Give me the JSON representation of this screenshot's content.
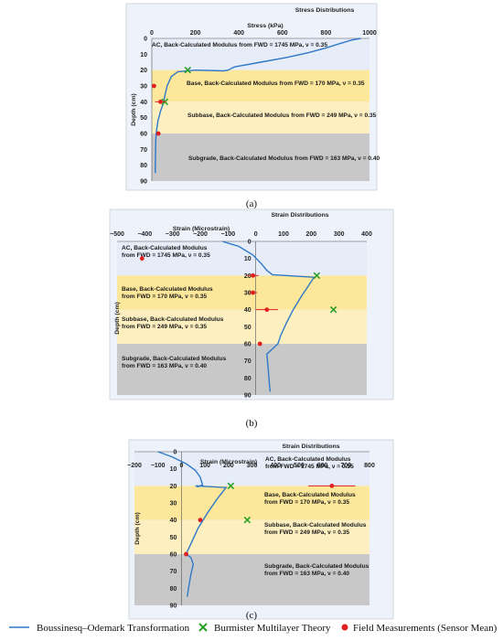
{
  "chart_data": [
    {
      "type": "line",
      "title": "Stress Distributions",
      "xlabel": "Stress (kPa)",
      "ylabel": "Depth (cm)",
      "caption": "(a)",
      "xlim": [
        0,
        1000
      ],
      "ylim": [
        0,
        90
      ],
      "xticks": [
        "0",
        "200",
        "400",
        "600",
        "800",
        "1000"
      ],
      "xtick_values": [
        0,
        200,
        400,
        600,
        800,
        1000
      ],
      "yticks": [
        "0",
        "10",
        "20",
        "30",
        "40",
        "50",
        "60",
        "70",
        "80",
        "90"
      ],
      "layers": [
        {
          "text": "AC, Back-Calculated Modulus from FWD = 1745 MPa, ν = 0.35",
          "top": 0,
          "bottom": 20,
          "color": "#e7edf8"
        },
        {
          "text": "Base, Back-Calculated Modulus from FWD = 170 MPa, ν = 0.35",
          "top": 20,
          "bottom": 40,
          "color": "#fde79b"
        },
        {
          "text": "Subbase, Back-Calculated Modulus from FWD = 249 MPa, ν = 0.35",
          "top": 40,
          "bottom": 60,
          "color": "#fdefc0"
        },
        {
          "text": "Subgrade, Back-Calculated Modulus from FWD = 163 MPa, ν = 0.40",
          "top": 60,
          "bottom": 90,
          "color": "#c8c8c8"
        }
      ],
      "series": [
        {
          "kind": "bo",
          "color": "#2f78c8",
          "points": [
            [
              960,
              0
            ],
            [
              920,
              1
            ],
            [
              870,
              3
            ],
            [
              800,
              6
            ],
            [
              720,
              9
            ],
            [
              620,
              12
            ],
            [
              500,
              15
            ],
            [
              380,
              18
            ],
            [
              350,
              20
            ],
            [
              330,
              20.5
            ],
            [
              200,
              20
            ],
            [
              120,
              21
            ],
            [
              90,
              24
            ],
            [
              70,
              30
            ],
            [
              60,
              36
            ],
            [
              55,
              40
            ],
            [
              40,
              46
            ],
            [
              28,
              52
            ],
            [
              22,
              58
            ],
            [
              20,
              60
            ],
            [
              18,
              65
            ],
            [
              17,
              75
            ],
            [
              16,
              85
            ]
          ]
        },
        {
          "kind": "bmlt",
          "color": "#2aa02a",
          "points": [
            [
              165,
              20
            ],
            [
              60,
              40
            ]
          ]
        },
        {
          "kind": "field",
          "color": "#e02020",
          "points": [
            [
              10,
              30
            ],
            [
              40,
              40
            ],
            [
              30,
              60
            ]
          ],
          "err": [
            0,
            25,
            0
          ]
        }
      ]
    },
    {
      "type": "line",
      "title": "Strain Distributions",
      "xlabel": "Strain (Microstrain)",
      "ylabel": "Depth (cm)",
      "caption": "(b)",
      "xlim": [
        -500,
        400
      ],
      "ylim": [
        0,
        90
      ],
      "xticks": [
        "−500",
        "−400",
        "−300",
        "−200",
        "−100",
        "0",
        "100",
        "200",
        "300",
        "400"
      ],
      "xtick_values": [
        -500,
        -400,
        -300,
        -200,
        -100,
        0,
        100,
        200,
        300,
        400
      ],
      "yticks": [
        "0",
        "10",
        "20",
        "30",
        "40",
        "50",
        "60",
        "70",
        "80",
        "90"
      ],
      "layers": [
        {
          "text": "AC, Back-Calculated Modulus from FWD = 1745 MPa, ν = 0.35",
          "top": 0,
          "bottom": 20,
          "color": "#e7edf8"
        },
        {
          "text": "Base, Back-Calculated Modulus from FWD = 170 MPa, ν = 0.35",
          "top": 20,
          "bottom": 40,
          "color": "#fde79b"
        },
        {
          "text": "Subbase, Back-Calculated Modulus from FWD = 249 MPa, ν = 0.35",
          "top": 40,
          "bottom": 60,
          "color": "#fdefc0"
        },
        {
          "text": "Subgrade, Back-Calculated Modulus from FWD = 163 MPa, ν = 0.40",
          "top": 60,
          "bottom": 90,
          "color": "#c8c8c8"
        }
      ],
      "series": [
        {
          "kind": "bo",
          "color": "#2f78c8",
          "points": [
            [
              -120,
              0
            ],
            [
              -60,
              3
            ],
            [
              -10,
              8
            ],
            [
              20,
              13
            ],
            [
              40,
              17
            ],
            [
              60,
              19.5
            ],
            [
              210,
              21
            ],
            [
              190,
              26
            ],
            [
              165,
              32
            ],
            [
              135,
              40
            ],
            [
              110,
              48
            ],
            [
              90,
              55
            ],
            [
              80,
              60
            ],
            [
              40,
              66
            ],
            [
              45,
              75
            ],
            [
              50,
              85
            ],
            [
              52,
              88
            ]
          ]
        },
        {
          "kind": "bmlt",
          "color": "#2aa02a",
          "points": [
            [
              220,
              20
            ],
            [
              280,
              40
            ]
          ]
        },
        {
          "kind": "field",
          "color": "#e02020",
          "points": [
            [
              -410,
              10
            ],
            [
              -10,
              20
            ],
            [
              -10,
              30
            ],
            [
              40,
              40
            ],
            [
              15,
              60
            ]
          ],
          "err": [
            0,
            20,
            15,
            40,
            0
          ]
        }
      ]
    },
    {
      "type": "line",
      "title": "Strain Distributions",
      "xlabel": "Strain (Microstrain)",
      "ylabel": "Depth (cm)",
      "caption": "(c)",
      "xlim": [
        -200,
        800
      ],
      "ylim": [
        0,
        90
      ],
      "xticks": [
        "−200",
        "−100",
        "0",
        "100",
        "200",
        "300",
        "400",
        "500",
        "600",
        "700",
        "800"
      ],
      "xtick_values": [
        -200,
        -100,
        0,
        100,
        200,
        300,
        400,
        500,
        600,
        700,
        800
      ],
      "yticks": [
        "0",
        "10",
        "20",
        "30",
        "40",
        "50",
        "60",
        "70",
        "80",
        "90"
      ],
      "layers": [
        {
          "text": "AC, Back-Calculated Modulus from FWD = 1745 MPa, ν = 0.35",
          "top": 0,
          "bottom": 20,
          "color": "#e7edf8"
        },
        {
          "text": "Base, Back-Calculated Modulus from FWD = 170 MPa, ν = 0.35",
          "top": 20,
          "bottom": 40,
          "color": "#fde79b"
        },
        {
          "text": "Subbase, Back-Calculated Modulus from FWD = 249 MPa, ν = 0.35",
          "top": 40,
          "bottom": 60,
          "color": "#fdefc0"
        },
        {
          "text": "Subgrade, Back-Calculated Modulus from FWD = 163 MPa, ν = 0.40",
          "top": 60,
          "bottom": 90,
          "color": "#c8c8c8"
        }
      ],
      "series": [
        {
          "kind": "bo",
          "color": "#2f78c8",
          "points": [
            [
              -100,
              0
            ],
            [
              -40,
              3
            ],
            [
              20,
              7
            ],
            [
              60,
              11
            ],
            [
              80,
              15
            ],
            [
              90,
              19.5
            ],
            [
              70,
              20.5
            ],
            [
              60,
              20
            ],
            [
              190,
              21
            ],
            [
              150,
              28
            ],
            [
              110,
              36
            ],
            [
              70,
              45
            ],
            [
              40,
              54
            ],
            [
              20,
              60
            ],
            [
              40,
              62
            ],
            [
              50,
              66
            ],
            [
              40,
              72
            ],
            [
              30,
              80
            ],
            [
              25,
              85
            ]
          ]
        },
        {
          "kind": "bmlt",
          "color": "#2aa02a",
          "points": [
            [
              210,
              20
            ],
            [
              280,
              40
            ]
          ]
        },
        {
          "kind": "field",
          "color": "#e02020",
          "points": [
            [
              640,
              20
            ],
            [
              80,
              40
            ],
            [
              20,
              60
            ]
          ],
          "err": [
            100,
            0,
            0
          ]
        }
      ]
    }
  ],
  "legend": {
    "items": [
      {
        "label": "Boussinesq–Odemark Transformation",
        "color": "#2f78c8",
        "kind": "line"
      },
      {
        "label": "Burmister Multilayer Theory",
        "color": "#2aa02a",
        "kind": "x"
      },
      {
        "label": "Field Measurements (Sensor Mean)",
        "color": "#e02020",
        "kind": "dot"
      }
    ]
  }
}
